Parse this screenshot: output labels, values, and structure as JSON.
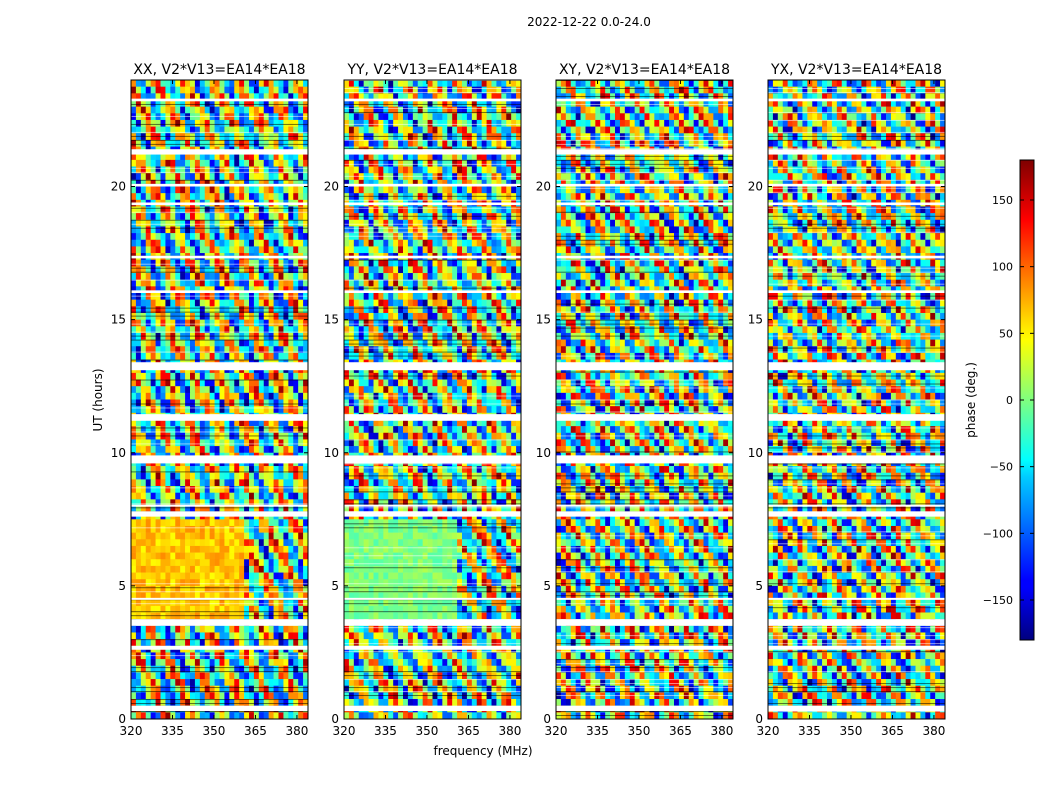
{
  "chart_data": {
    "type": "heatmap",
    "title": "2022-12-22 0.0-24.0",
    "xlabel": "frequency (MHz)",
    "ylabel": "UT (hours)",
    "xlim": [
      320,
      384
    ],
    "ylim": [
      0,
      24
    ],
    "x_ticks": [
      "320",
      "335",
      "350",
      "365",
      "380"
    ],
    "x_tick_values": [
      320,
      335,
      350,
      365,
      380
    ],
    "y_ticks": [
      "0",
      "5",
      "10",
      "15",
      "20"
    ],
    "y_tick_values": [
      0,
      5,
      10,
      15,
      20
    ],
    "panels": [
      {
        "title": "XX, V2*V13=EA14*EA18",
        "polarization": "XX"
      },
      {
        "title": "YY, V2*V13=EA14*EA18",
        "polarization": "YY"
      },
      {
        "title": "XY, V2*V13=EA14*EA18",
        "polarization": "XY"
      },
      {
        "title": "YX, V2*V13=EA14*EA18",
        "polarization": "YX"
      }
    ],
    "colorbar": {
      "label": "phase (deg.)",
      "colormap": "jet",
      "range": [
        -180,
        180
      ],
      "ticks": [
        "150",
        "100",
        "50",
        "0",
        "−50",
        "−100",
        "−150"
      ],
      "tick_values": [
        150,
        100,
        50,
        0,
        -50,
        -100,
        -150
      ]
    }
  }
}
